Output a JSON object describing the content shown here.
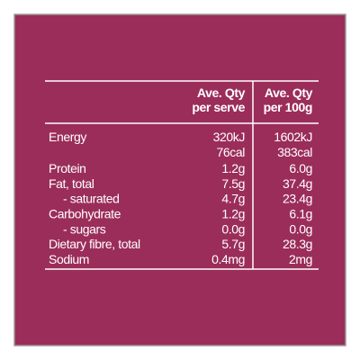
{
  "table": {
    "headers": [
      [
        "Ave. Qty",
        "per serve"
      ],
      [
        "Ave. Qty",
        "per 100g"
      ]
    ],
    "rows": [
      {
        "label": "Energy",
        "per_serve": [
          "320kJ",
          "76cal"
        ],
        "per_100g": [
          "1602kJ",
          "383cal"
        ]
      },
      {
        "label": "Protein",
        "per_serve": "1.2g",
        "per_100g": "6.0g"
      },
      {
        "label": "Fat, total",
        "per_serve": "7.5g",
        "per_100g": "37.4g"
      },
      {
        "label": "- saturated",
        "per_serve": "4.7g",
        "per_100g": "23.4g"
      },
      {
        "label": "Carbohydrate",
        "per_serve": "1.2g",
        "per_100g": "6.1g"
      },
      {
        "label": "- sugars",
        "per_serve": "0.0g",
        "per_100g": "0.0g"
      },
      {
        "label": "Dietary fibre, total",
        "per_serve": "5.7g",
        "per_100g": "28.3g"
      },
      {
        "label": "Sodium",
        "per_serve": "0.4mg",
        "per_100g": "2mg"
      }
    ]
  }
}
